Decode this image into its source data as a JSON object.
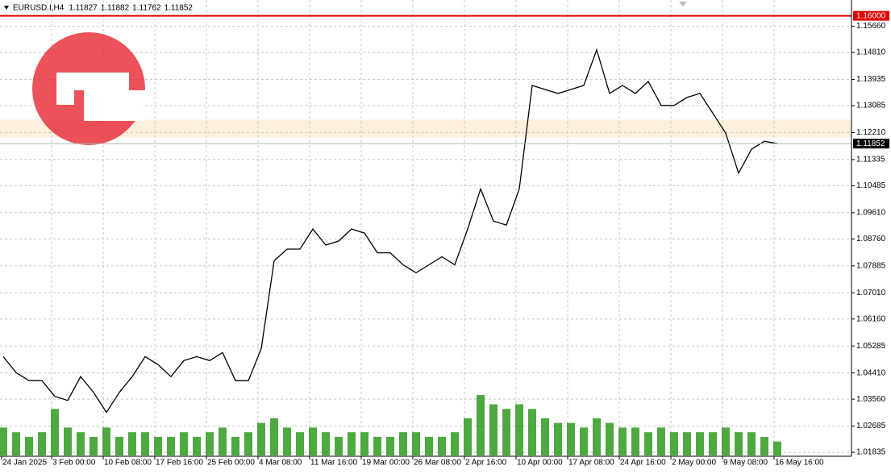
{
  "chart_data": {
    "type": "line",
    "symbol": "EURUSD.I,H4",
    "ohlc_header": [
      1.11827,
      1.11882,
      1.11762,
      1.11852
    ],
    "x": [
      2,
      10,
      18,
      26,
      34,
      42,
      50,
      58,
      66,
      74,
      82,
      90,
      98,
      106,
      114,
      122,
      130,
      138,
      146,
      154,
      162,
      170,
      178,
      186,
      194,
      202,
      210,
      218,
      226,
      234,
      242,
      250,
      258,
      266,
      274,
      282,
      290,
      298,
      306,
      314,
      322,
      330,
      338,
      346,
      354,
      362,
      370,
      378,
      386,
      394,
      402,
      410,
      418,
      426,
      434,
      442,
      450,
      458,
      466,
      474,
      482
    ],
    "values": [
      1.0494,
      1.0442,
      1.0416,
      1.0416,
      1.0365,
      1.0352,
      1.0429,
      1.0378,
      1.0313,
      1.0378,
      1.0429,
      1.0494,
      1.0468,
      1.0429,
      1.0481,
      1.0494,
      1.0481,
      1.0507,
      1.0416,
      1.0416,
      1.052,
      1.0805,
      1.0843,
      1.0843,
      1.0908,
      1.0856,
      1.0869,
      1.0908,
      1.0895,
      1.0831,
      1.0831,
      1.0792,
      1.0766,
      1.0792,
      1.0818,
      1.0792,
      1.0908,
      1.1038,
      1.0934,
      1.0921,
      1.1038,
      1.1374,
      1.1361,
      1.1348,
      1.1361,
      1.1374,
      1.149,
      1.1348,
      1.1374,
      1.1348,
      1.1387,
      1.1309,
      1.1309,
      1.1335,
      1.1348,
      1.1284,
      1.1219,
      1.1089,
      1.1167,
      1.1193,
      1.1185
    ],
    "volume": [
      30,
      25,
      20,
      25,
      50,
      30,
      25,
      20,
      30,
      20,
      25,
      25,
      20,
      20,
      25,
      20,
      25,
      30,
      20,
      25,
      35,
      40,
      30,
      25,
      30,
      25,
      20,
      25,
      25,
      20,
      20,
      25,
      25,
      20,
      20,
      25,
      40,
      65,
      55,
      50,
      55,
      50,
      40,
      35,
      35,
      30,
      40,
      35,
      30,
      30,
      25,
      30,
      25,
      25,
      25,
      25,
      30,
      25,
      25,
      20,
      15
    ],
    "color": "#000000",
    "volume_color": "#2e9a1e",
    "xlim": [
      0,
      528
    ],
    "ylim": [
      1.01706,
      1.16513
    ],
    "xticks": [
      {
        "value": 1,
        "label": "24 Jan 2025"
      },
      {
        "value": 32,
        "label": "3 Feb 00:00"
      },
      {
        "value": 64,
        "label": "10 Feb 08:00"
      },
      {
        "value": 96,
        "label": "17 Feb 16:00"
      },
      {
        "value": 128,
        "label": "25 Feb 00:00"
      },
      {
        "value": 160,
        "label": "4 Mar 08:00"
      },
      {
        "value": 192,
        "label": "11 Mar 16:00"
      },
      {
        "value": 224,
        "label": "19 Mar 00:00"
      },
      {
        "value": 256,
        "label": "26 Mar 08:00"
      },
      {
        "value": 288,
        "label": "2 Apr 16:00"
      },
      {
        "value": 320,
        "label": "10 Apr 00:00"
      },
      {
        "value": 352,
        "label": "17 Apr 08:00"
      },
      {
        "value": 384,
        "label": "24 Apr 16:00"
      },
      {
        "value": 416,
        "label": "2 May 00:00"
      },
      {
        "value": 448,
        "label": "9 May 08:00"
      },
      {
        "value": 480,
        "label": "16 May 16:00"
      }
    ],
    "yticks": [
      {
        "value": 1.1566,
        "label": "1.15660"
      },
      {
        "value": 1.1481,
        "label": "1.14810"
      },
      1.13935,
      1.13085,
      {
        "value": 1.1221,
        "label": "1.12210"
      },
      1.11335,
      1.10485,
      {
        "value": 1.0961,
        "label": "1.09610"
      },
      {
        "value": 1.0876,
        "label": "1.08760"
      },
      1.07885,
      {
        "value": 1.0701,
        "label": "1.07010"
      },
      {
        "value": 1.0616,
        "label": "1.06160"
      },
      1.05285,
      {
        "value": 1.0441,
        "label": "1.04410"
      },
      {
        "value": 1.0356,
        "label": "1.03560"
      },
      1.02685,
      1.01835
    ],
    "level": {
      "value": 1.16,
      "label": "1.16000",
      "color": "#e00000"
    },
    "last_price": 1.11852,
    "zone": [
      1.1206,
      1.1263
    ],
    "grid": true
  }
}
